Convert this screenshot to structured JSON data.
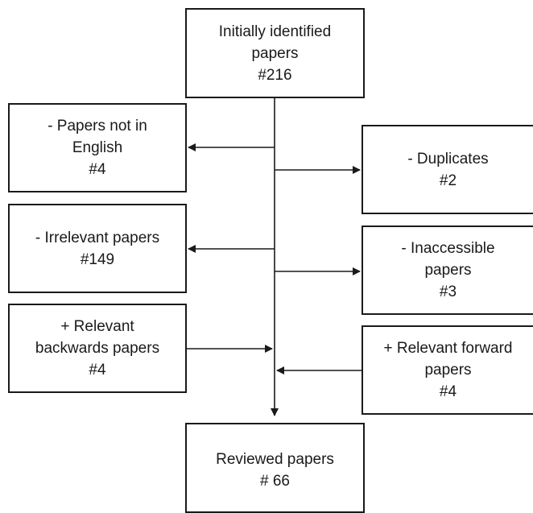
{
  "start": {
    "lines": [
      "Initially identified",
      "papers",
      "#216"
    ]
  },
  "left_boxes": [
    {
      "lines": [
        "- Papers not in",
        "English",
        "#4"
      ]
    },
    {
      "lines": [
        "- Irrelevant papers",
        "#149"
      ]
    },
    {
      "lines": [
        "+ Relevant",
        "backwards papers",
        "#4"
      ]
    }
  ],
  "right_boxes": [
    {
      "lines": [
        "- Duplicates",
        "#2"
      ]
    },
    {
      "lines": [
        "- Inaccessible",
        "papers",
        "#3"
      ]
    },
    {
      "lines": [
        "+ Relevant forward",
        "papers",
        "#4"
      ]
    }
  ],
  "end": {
    "lines": [
      "Reviewed papers",
      "# 66"
    ]
  }
}
